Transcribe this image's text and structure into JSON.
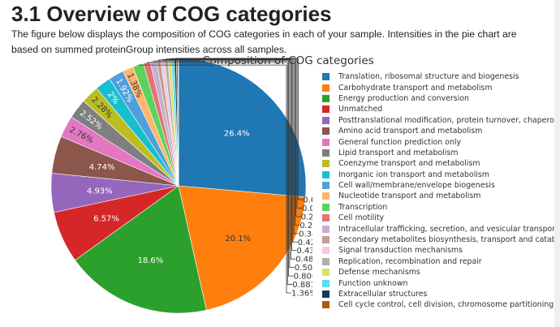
{
  "page": {
    "heading": "3.1 Overview of COG categories",
    "description": "The figure below displays the composition of COG categories in each of your sample. Intensities in the pie chart are based on summed proteinGroup intensities across all samples."
  },
  "chart_data": {
    "type": "pie",
    "title": "Composition of COG categories",
    "legend_position": "right",
    "direction": "clockwise",
    "start": "top",
    "slices": [
      {
        "name": "Translation, ribosomal structure and biogenesis",
        "value": 26.4,
        "label": "26.4%",
        "color": "#1f77b4"
      },
      {
        "name": "Carbohydrate transport and metabolism",
        "value": 20.1,
        "label": "20.1%",
        "color": "#ff7f0e"
      },
      {
        "name": "Energy production and conversion",
        "value": 18.6,
        "label": "18.6%",
        "color": "#2ca02c"
      },
      {
        "name": "Unmatched",
        "value": 6.57,
        "label": "6.57%",
        "color": "#d62728"
      },
      {
        "name": "Posttranslational modification, protein turnover, chaperones",
        "value": 4.93,
        "label": "4.93%",
        "color": "#9467bd"
      },
      {
        "name": "Amino acid transport and metabolism",
        "value": 4.74,
        "label": "4.74%",
        "color": "#8c564b"
      },
      {
        "name": "General function prediction only",
        "value": 2.76,
        "label": "2.76%",
        "color": "#e377c2"
      },
      {
        "name": "Lipid transport and metabolism",
        "value": 2.52,
        "label": "2.52%",
        "color": "#7f7f7f"
      },
      {
        "name": "Coenzyme transport and metabolism",
        "value": 2.28,
        "label": "2.28%",
        "color": "#bcbd22"
      },
      {
        "name": "Inorganic ion transport and metabolism",
        "value": 2,
        "label": "2%",
        "color": "#17becf"
      },
      {
        "name": "Cell wall/membrane/envelope biogenesis",
        "value": 1.92,
        "label": "1.92%",
        "color": "#4f9fdc"
      },
      {
        "name": "Nucleotide transport and metabolism",
        "value": 1.38,
        "label": "1.38%",
        "color": "#ffb56b"
      },
      {
        "name": "Transcription",
        "value": 1.36,
        "label": "1.36%",
        "color": "#5cd25c"
      },
      {
        "name": "Cell motility",
        "value": 0.881,
        "label": "0.881%",
        "color": "#e57373"
      },
      {
        "name": "Intracellular trafficking, secretion, and vesicular transport",
        "value": 0.806,
        "label": "0.806%",
        "color": "#c5b0d5"
      },
      {
        "name": "Secondary metabolites biosynthesis, transport and catabolism",
        "value": 0.507,
        "label": "0.507%",
        "color": "#c49c94"
      },
      {
        "name": "Signal transduction mechanisms",
        "value": 0.487,
        "label": "0.487%",
        "color": "#f7c6e0"
      },
      {
        "name": "Replication, recombination and repair",
        "value": 0.435,
        "label": "0.435%",
        "color": "#b0b0b0"
      },
      {
        "name": "Defense mechanisms",
        "value": 0.429,
        "label": "0.429%",
        "color": "#dfe06a"
      },
      {
        "name": "Function unknown",
        "value": 0.381,
        "label": "0.381%",
        "color": "#5fdde9"
      },
      {
        "name": "Extracellular structures",
        "value": 0.266,
        "label": "0.266%",
        "color": "#0b3d5c"
      },
      {
        "name": "Cell cycle control, cell division, chromosome partitioning",
        "value": 0.222,
        "label": "0.222%",
        "color": "#b35806"
      },
      {
        "name": "",
        "value": 0.043,
        "label": "0.043%",
        "color": "#2a7a2a"
      },
      {
        "name": "",
        "value": 0.003,
        "label": "0.003%",
        "color": "#8b1a1a"
      }
    ]
  }
}
